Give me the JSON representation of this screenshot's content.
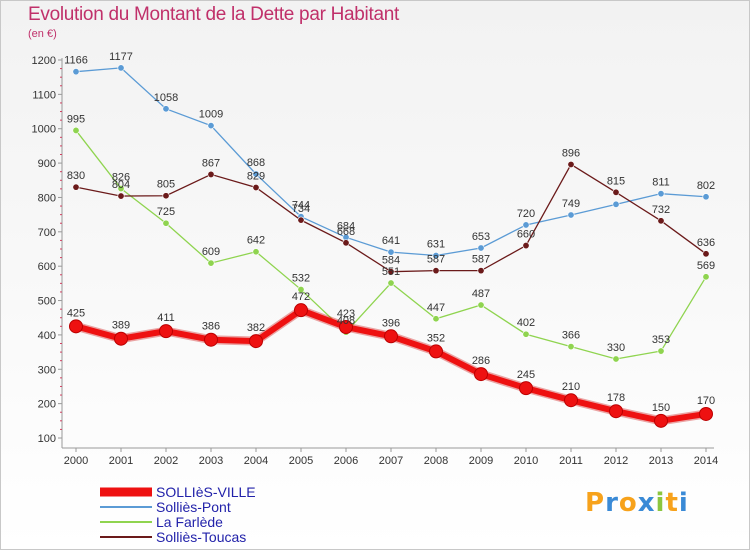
{
  "chart_data": {
    "type": "line",
    "title": "Evolution du Montant de la Dette par Habitant",
    "subtitle": "(en €)",
    "x": [
      "2000",
      "2001",
      "2002",
      "2003",
      "2004",
      "2005",
      "2006",
      "2007",
      "2008",
      "2009",
      "2010",
      "2011",
      "2012",
      "2013",
      "2014"
    ],
    "ylim": [
      100,
      1200
    ],
    "yticks": [
      100,
      200,
      300,
      400,
      500,
      600,
      700,
      800,
      900,
      1000,
      1100,
      1200
    ],
    "grid": false,
    "legend_position": "bottom-left",
    "series": [
      {
        "name": "Solliès-Pont",
        "color": "#5b9bd5",
        "values": [
          1166,
          1177,
          1058,
          1009,
          868,
          744,
          684,
          641,
          631,
          653,
          720,
          749,
          780,
          811,
          802
        ],
        "labels": [
          "1166",
          "1177",
          "1058",
          "1009",
          "868",
          "744",
          "684",
          "641",
          "631",
          "653",
          "720",
          "749",
          "",
          "811",
          "802"
        ]
      },
      {
        "name": "La Farlède",
        "color": "#8fd44f",
        "values": [
          995,
          826,
          725,
          609,
          642,
          532,
          408,
          551,
          447,
          487,
          402,
          366,
          330,
          353,
          569
        ],
        "labels": [
          "995",
          "826",
          "725",
          "609",
          "642",
          "532",
          "408",
          "551",
          "447",
          "487",
          "402",
          "366",
          "330",
          "353",
          "569"
        ]
      },
      {
        "name": "Solliès-Toucas",
        "color": "#6b1a1a",
        "values": [
          830,
          804,
          805,
          867,
          829,
          734,
          668,
          584,
          587,
          587,
          660,
          896,
          815,
          732,
          636
        ],
        "labels": [
          "830",
          "804",
          "805",
          "867",
          "829",
          "734",
          "668",
          "584",
          "587",
          "587",
          "660",
          "896",
          "815",
          "732",
          "636"
        ]
      },
      {
        "name": "SOLLIèS-VILLE",
        "color": "#ee1111",
        "bold": true,
        "values": [
          425,
          389,
          411,
          386,
          382,
          472,
          423,
          396,
          352,
          286,
          245,
          210,
          178,
          150,
          170
        ],
        "labels": [
          "425",
          "389",
          "411",
          "386",
          "382",
          "472",
          "423",
          "396",
          "352",
          "286",
          "245",
          "210",
          "178",
          "150",
          "170"
        ]
      }
    ]
  },
  "legend": [
    {
      "label": "SOLLIèS-VILLE",
      "color": "#ee1111",
      "bold": true
    },
    {
      "label": "Solliès-Pont",
      "color": "#5b9bd5"
    },
    {
      "label": "La Farlède",
      "color": "#8fd44f"
    },
    {
      "label": "Solliès-Toucas",
      "color": "#6b1a1a"
    }
  ],
  "logo": {
    "text": "Proxiti",
    "letter_colors": [
      "#f7a21b",
      "#3a8ad6",
      "#f7a21b",
      "#3a8ad6",
      "#8cc63f",
      "#f7a21b",
      "#3a8ad6"
    ]
  }
}
